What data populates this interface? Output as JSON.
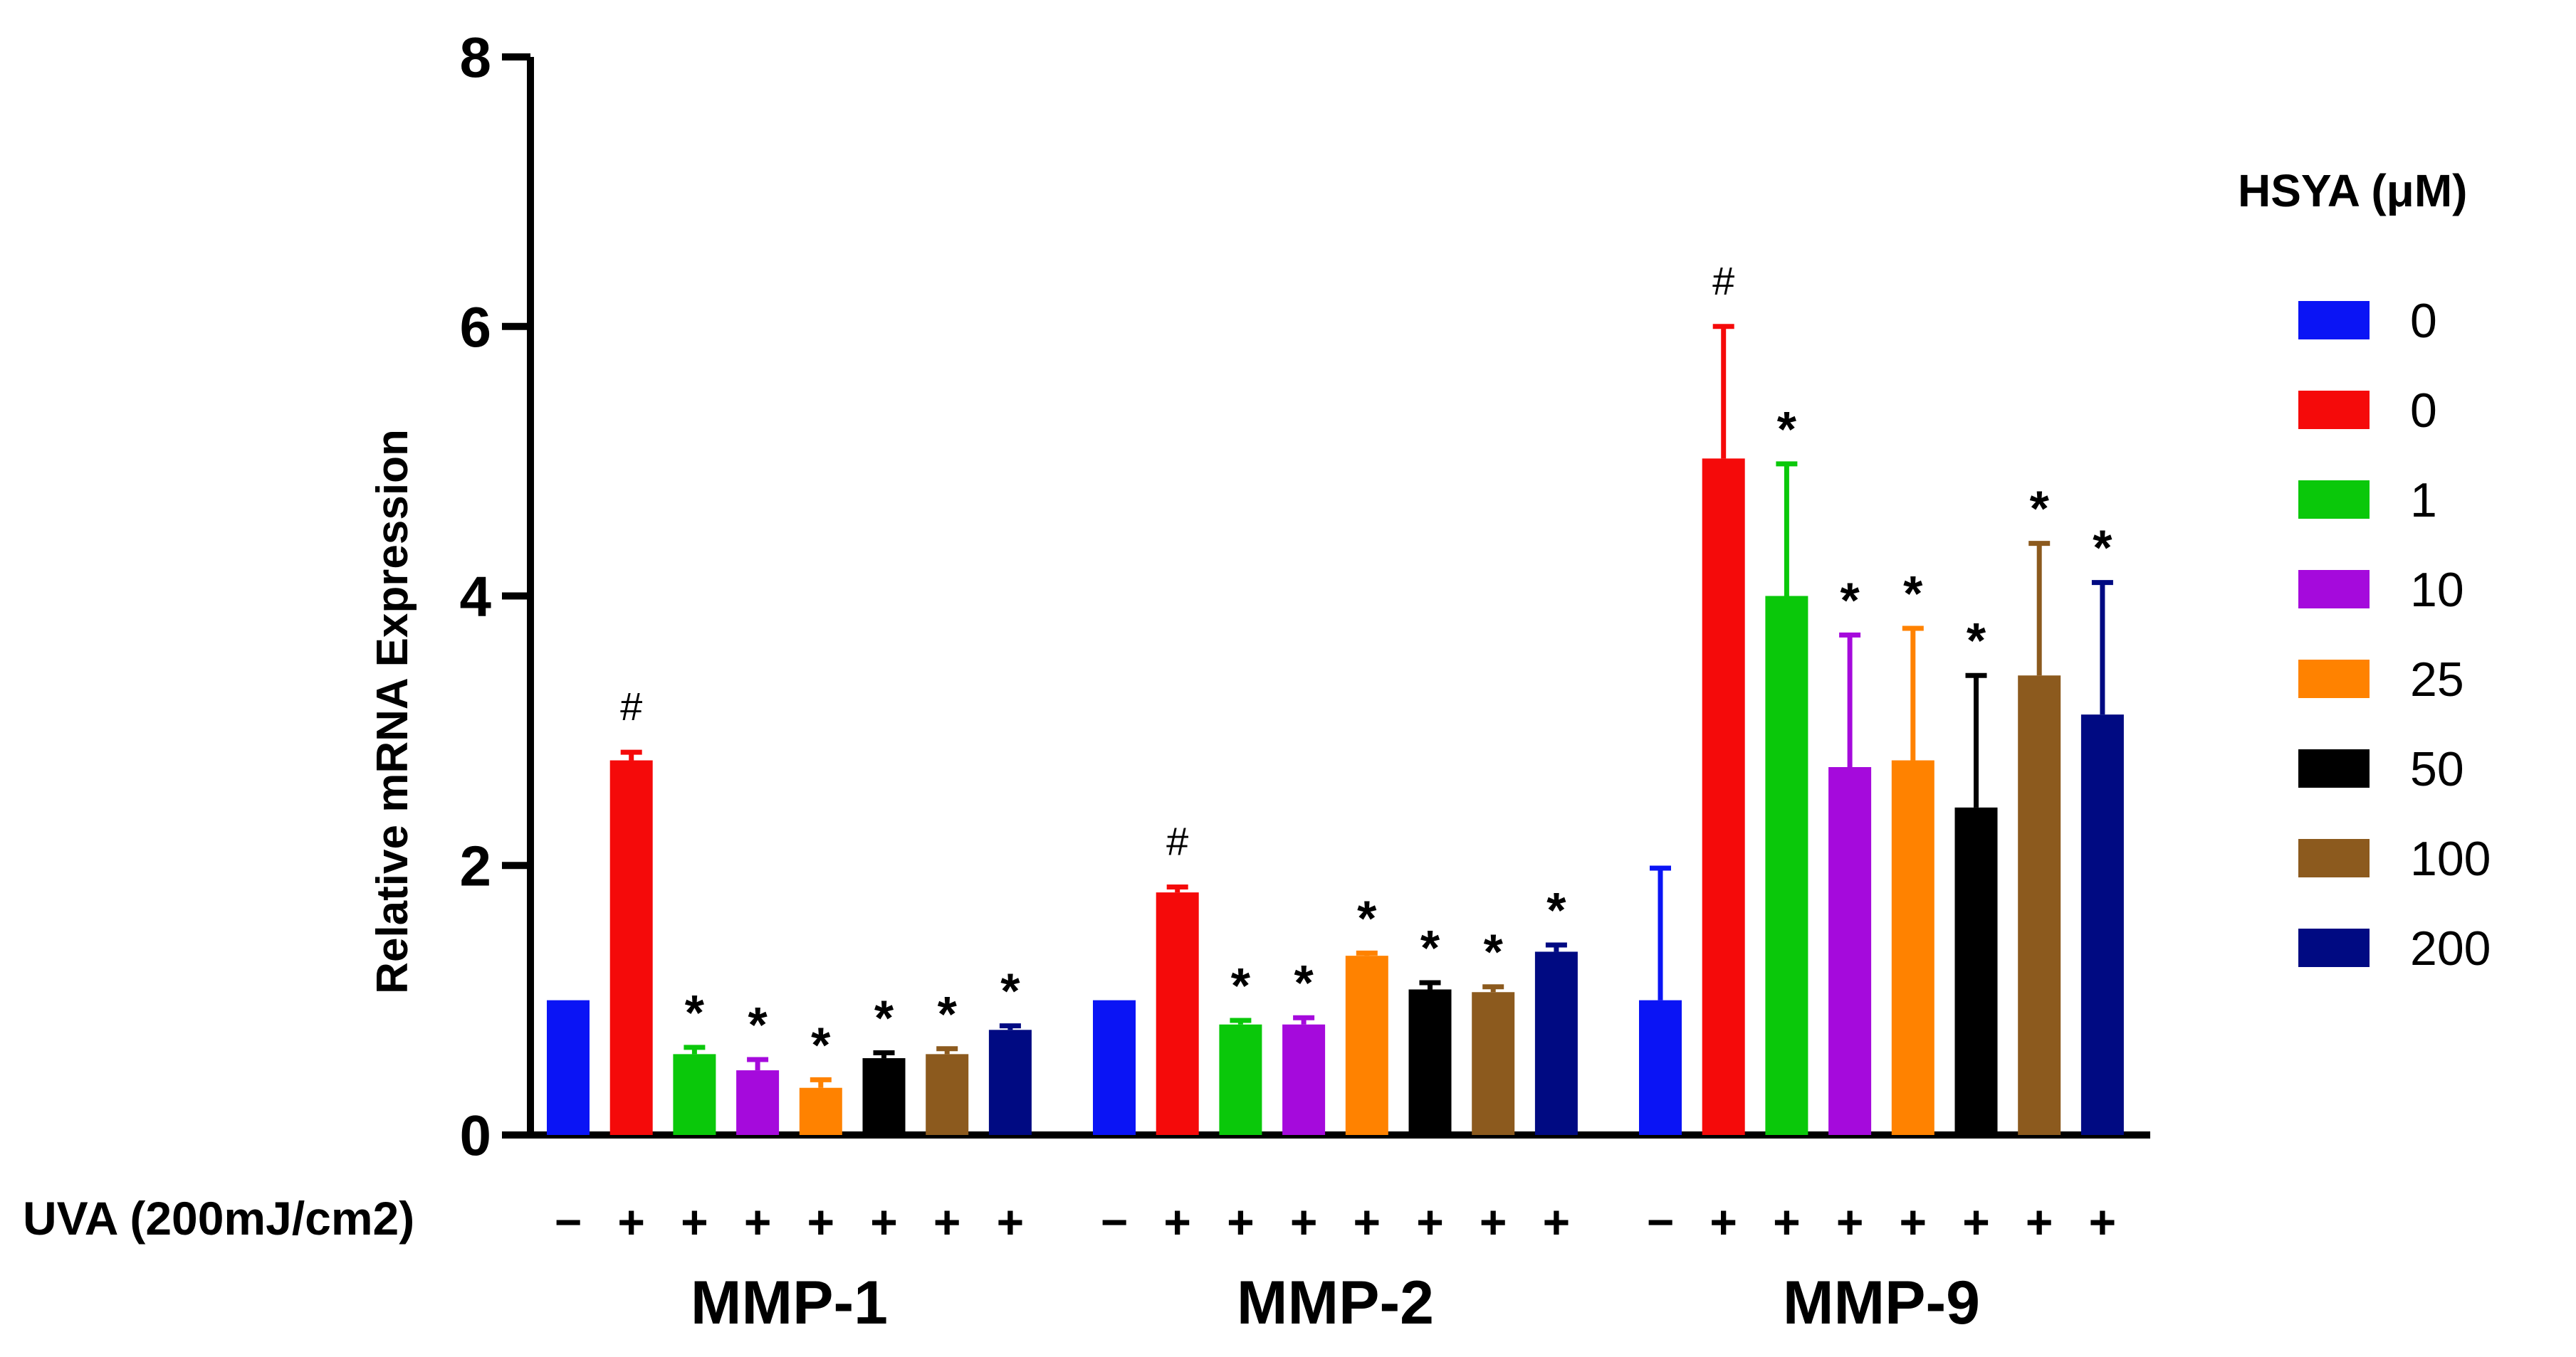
{
  "chart_data": {
    "type": "bar",
    "ylabel": "Relative mRNA Expression",
    "ylim": [
      0,
      8
    ],
    "yticks": [
      0,
      2,
      4,
      6,
      8
    ],
    "categories": [
      "MMP-1",
      "MMP-2",
      "MMP-9"
    ],
    "uva_label": "UVA (200mJ/cm2)",
    "uva_signs": [
      "−",
      "+",
      "+",
      "+",
      "+",
      "+",
      "+",
      "+"
    ],
    "legend_title": "HSYA (μM)",
    "series": [
      {
        "name": "0",
        "color": "#0a14f5",
        "values": [
          1.0,
          1.0,
          1.0
        ],
        "errors": [
          0.0,
          0.0,
          0.98
        ],
        "marks": [
          "",
          "",
          ""
        ]
      },
      {
        "name": "0",
        "color": "#f50a0a",
        "values": [
          2.78,
          1.8,
          5.02
        ],
        "errors": [
          0.06,
          0.04,
          0.98
        ],
        "marks": [
          "#",
          "#",
          "#"
        ]
      },
      {
        "name": "1",
        "color": "#0ac80a",
        "values": [
          0.6,
          0.82,
          4.0
        ],
        "errors": [
          0.05,
          0.03,
          0.98
        ],
        "marks": [
          "*",
          "*",
          "*"
        ]
      },
      {
        "name": "10",
        "color": "#a50adc",
        "values": [
          0.48,
          0.82,
          2.73
        ],
        "errors": [
          0.08,
          0.05,
          0.98
        ],
        "marks": [
          "*",
          "*",
          "*"
        ]
      },
      {
        "name": "25",
        "color": "#ff8200",
        "values": [
          0.35,
          1.33,
          2.78
        ],
        "errors": [
          0.06,
          0.02,
          0.98
        ],
        "marks": [
          "*",
          "*",
          "*"
        ]
      },
      {
        "name": "50",
        "color": "#000000",
        "values": [
          0.57,
          1.08,
          2.43
        ],
        "errors": [
          0.04,
          0.05,
          0.98
        ],
        "marks": [
          "*",
          "*",
          "*"
        ]
      },
      {
        "name": "100",
        "color": "#8c5a1e",
        "values": [
          0.6,
          1.06,
          3.41
        ],
        "errors": [
          0.04,
          0.04,
          0.98
        ],
        "marks": [
          "*",
          "*",
          "*"
        ]
      },
      {
        "name": "200",
        "color": "#000a82",
        "values": [
          0.78,
          1.36,
          3.12
        ],
        "errors": [
          0.03,
          0.05,
          0.98
        ],
        "marks": [
          "*",
          "*",
          "*"
        ]
      }
    ]
  }
}
